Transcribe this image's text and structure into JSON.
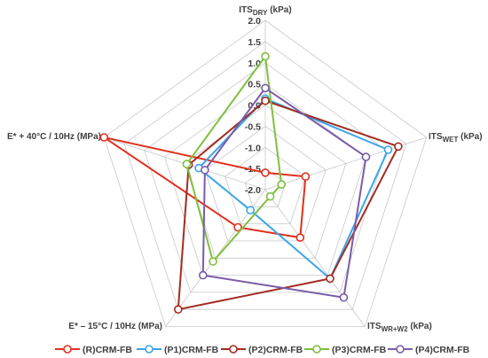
{
  "chart_data": {
    "type": "radar",
    "rmin": -2.0,
    "rmax": 2.0,
    "ticks": [
      "2.0",
      "1.5",
      "1.0",
      "0.5",
      "0.0",
      "-0.5",
      "-1.0",
      "-1.5",
      "-2.0"
    ],
    "tick_values": [
      2.0,
      1.5,
      1.0,
      0.5,
      0.0,
      -0.5,
      -1.0,
      -1.5,
      -2.0
    ],
    "axes": [
      {
        "name": "ITS",
        "sub": "DRY",
        "unit": " (kPa)"
      },
      {
        "name": "ITS",
        "sub": "WET",
        "unit": " (kPa)"
      },
      {
        "name": "ITS",
        "sub": "WR+W2",
        "unit": " (kPa)"
      },
      {
        "name": "E* – 15°C / 10Hz (MPa)",
        "sub": "",
        "unit": ""
      },
      {
        "name": "E* + 40°C / 10Hz (MPa)",
        "sub": "",
        "unit": ""
      }
    ],
    "legend_position": "bottom",
    "series": [
      {
        "name": "(R)CRM-FB",
        "color": "#e0301e",
        "values": [
          -1.6,
          -1.0,
          -0.6,
          -0.9,
          2.0
        ]
      },
      {
        "name": "(P1)CRM-FB",
        "color": "#3aa5e8",
        "values": [
          0.15,
          1.05,
          0.6,
          -1.4,
          -0.35
        ]
      },
      {
        "name": "(P2)CRM-FB",
        "color": "#a32c22",
        "values": [
          0.1,
          1.3,
          0.6,
          1.5,
          -0.1
        ]
      },
      {
        "name": "(P3)CRM-FB",
        "color": "#7fbf3f",
        "values": [
          1.15,
          -1.6,
          -1.8,
          0.1,
          -0.05
        ]
      },
      {
        "name": "(P4)CRM-FB",
        "color": "#7a5ca8",
        "values": [
          0.4,
          0.5,
          1.15,
          0.5,
          -0.5
        ]
      }
    ]
  }
}
